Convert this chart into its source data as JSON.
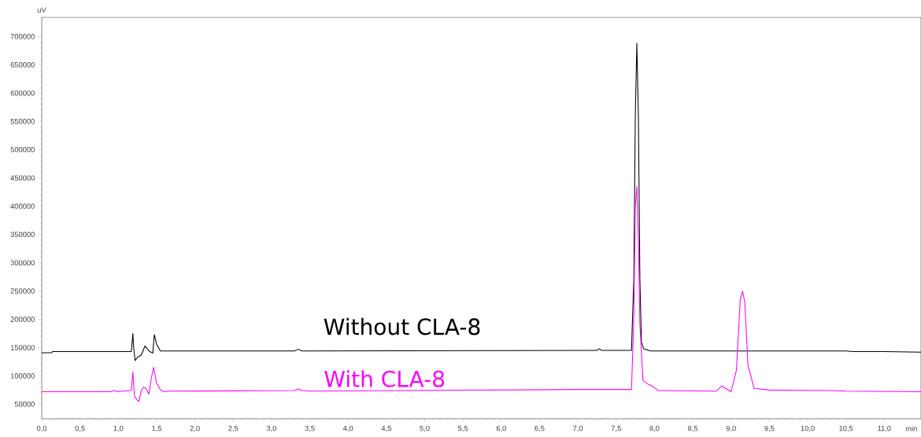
{
  "chart_data": {
    "type": "line",
    "xlabel": "min",
    "ylabel": "uV",
    "xlim": [
      0,
      11.48
    ],
    "ylim": [
      24000,
      734000
    ],
    "xticks": [
      {
        "value": 0,
        "label": "0,0"
      },
      {
        "value": 0.5,
        "label": "0,5"
      },
      {
        "value": 1,
        "label": "1,0"
      },
      {
        "value": 1.5,
        "label": "1,5"
      },
      {
        "value": 2,
        "label": "2,0"
      },
      {
        "value": 2.5,
        "label": "2,5"
      },
      {
        "value": 3,
        "label": "3,0"
      },
      {
        "value": 3.5,
        "label": "3,5"
      },
      {
        "value": 4,
        "label": "4,0"
      },
      {
        "value": 4.5,
        "label": "4,5"
      },
      {
        "value": 5,
        "label": "5,0"
      },
      {
        "value": 5.5,
        "label": "5,5"
      },
      {
        "value": 6,
        "label": "6,0"
      },
      {
        "value": 6.5,
        "label": "6,5"
      },
      {
        "value": 7,
        "label": "7,0"
      },
      {
        "value": 7.5,
        "label": "7,5"
      },
      {
        "value": 8,
        "label": "8,0"
      },
      {
        "value": 8.5,
        "label": "8,5"
      },
      {
        "value": 9,
        "label": "9,0"
      },
      {
        "value": 9.5,
        "label": "9,5"
      },
      {
        "value": 10,
        "label": "10,0"
      },
      {
        "value": 10.5,
        "label": "10,5"
      },
      {
        "value": 11,
        "label": "11,0"
      }
    ],
    "yticks": [
      50000,
      100000,
      150000,
      200000,
      250000,
      300000,
      350000,
      400000,
      450000,
      500000,
      550000,
      600000,
      650000,
      700000
    ],
    "grid": false,
    "marker": "none",
    "line_style": "solid",
    "series": [
      {
        "name": "Without CLA-8",
        "color": "#000000",
        "x": [
          0,
          0.13,
          0.14,
          1.17,
          1.19,
          1.2,
          1.22,
          1.25,
          1.3,
          1.35,
          1.4,
          1.45,
          1.47,
          1.5,
          1.55,
          3.3,
          3.35,
          3.4,
          7.25,
          7.28,
          7.31,
          7.7,
          7.73,
          7.75,
          7.77,
          7.79,
          7.81,
          7.83,
          7.86,
          7.95,
          10.5,
          10.6,
          11.0,
          11.48
        ],
        "values": [
          141000,
          141000,
          143000,
          143000,
          175000,
          150000,
          127000,
          133000,
          137000,
          153000,
          144000,
          140000,
          173000,
          156000,
          144000,
          144000,
          147000,
          144000,
          145000,
          148000,
          145000,
          145000,
          270000,
          560000,
          688000,
          560000,
          270000,
          160000,
          148000,
          144000,
          144000,
          143000,
          143000,
          142000
        ]
      },
      {
        "name": "With CLA-8",
        "color": "#ff00ff",
        "x": [
          0,
          0.9,
          0.95,
          1.0,
          1.05,
          1.17,
          1.19,
          1.21,
          1.24,
          1.27,
          1.3,
          1.33,
          1.36,
          1.4,
          1.43,
          1.46,
          1.5,
          1.55,
          1.6,
          1.65,
          3.3,
          3.35,
          3.4,
          3.5,
          7.1,
          7.7,
          7.73,
          7.75,
          7.77,
          7.79,
          7.81,
          7.85,
          7.92,
          7.96,
          8.05,
          8.8,
          8.88,
          9.0,
          9.07,
          9.12,
          9.15,
          9.18,
          9.22,
          9.3,
          9.5,
          10.3,
          10.5,
          11.48
        ],
        "values": [
          72000,
          72000,
          74000,
          72000,
          73000,
          74000,
          107000,
          65000,
          58000,
          55000,
          74000,
          80000,
          78000,
          68000,
          95000,
          115000,
          87000,
          75000,
          72000,
          73000,
          74000,
          77000,
          74000,
          73000,
          76000,
          76000,
          200000,
          400000,
          435000,
          340000,
          190000,
          92000,
          85000,
          83000,
          74000,
          73000,
          82000,
          72000,
          110000,
          235000,
          250000,
          230000,
          120000,
          78000,
          75000,
          74000,
          73000,
          72000
        ]
      }
    ]
  }
}
